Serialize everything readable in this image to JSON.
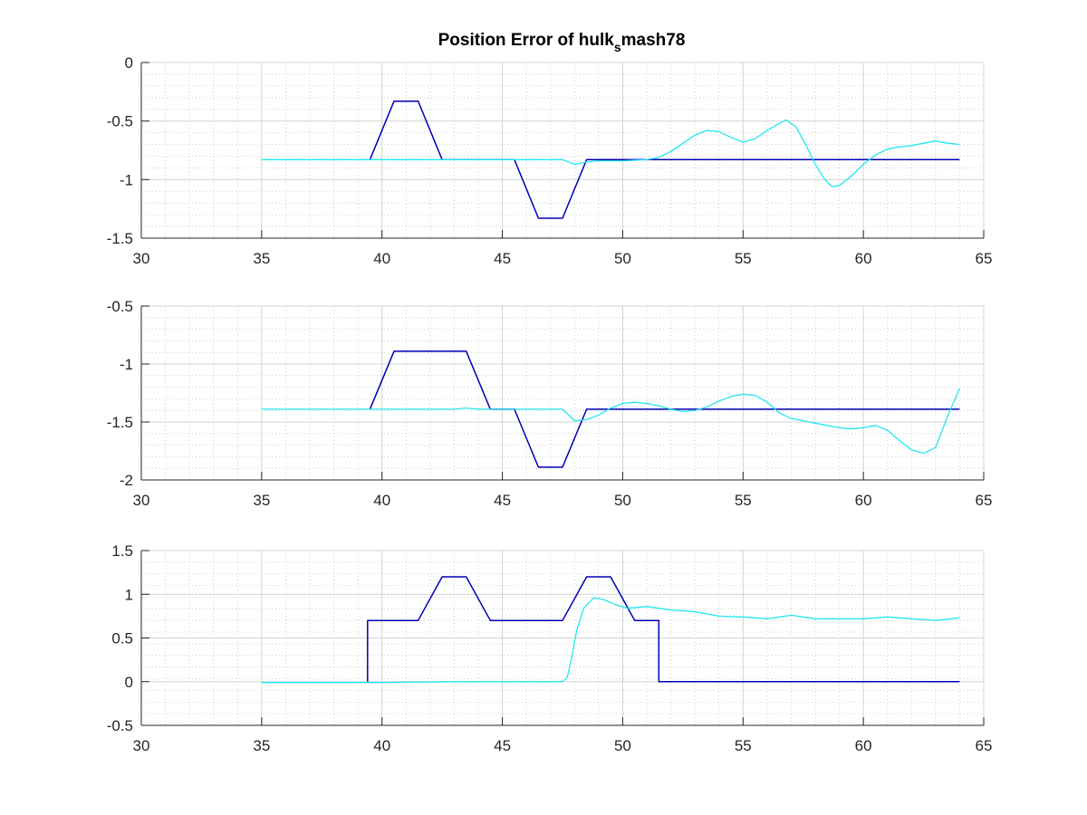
{
  "title": {
    "main": "Position Error of hulk",
    "subscript": "s",
    "suffix": "mash78"
  },
  "colors": {
    "background": "#ffffff",
    "axes": "#262626",
    "major_grid": "#d4d4d4",
    "minor_grid": "#c4c4c4",
    "reference": "#0000b3",
    "actual": "#22e6f0"
  },
  "chart_data": [
    {
      "type": "line",
      "xlim": [
        30,
        65
      ],
      "ylim": [
        -1.5,
        0
      ],
      "xticks": [
        30,
        35,
        40,
        45,
        50,
        55,
        60,
        65
      ],
      "yticks": [
        -1.5,
        -1,
        -0.5,
        0
      ],
      "xtick_labels": [
        "30",
        "35",
        "40",
        "45",
        "50",
        "55",
        "60",
        "65"
      ],
      "ytick_labels": [
        "-1.5",
        "-1",
        "-0.5",
        "0"
      ],
      "grid": "major and minor dotted",
      "series": [
        {
          "color": "#0000b3",
          "points": [
            [
              39.5,
              -0.83
            ],
            [
              40.5,
              -0.33
            ],
            [
              41.5,
              -0.33
            ],
            [
              42.5,
              -0.83
            ],
            [
              45.5,
              -0.83
            ],
            [
              46.5,
              -1.33
            ],
            [
              47.5,
              -1.33
            ],
            [
              48.5,
              -0.83
            ],
            [
              64,
              -0.83
            ]
          ]
        },
        {
          "color": "#22e6f0",
          "points": [
            [
              35,
              -0.83
            ],
            [
              40,
              -0.83
            ],
            [
              45,
              -0.83
            ],
            [
              47.5,
              -0.83
            ],
            [
              48,
              -0.87
            ],
            [
              48.5,
              -0.85
            ],
            [
              49,
              -0.84
            ],
            [
              50,
              -0.84
            ],
            [
              51,
              -0.83
            ],
            [
              51.5,
              -0.81
            ],
            [
              52,
              -0.76
            ],
            [
              52.5,
              -0.69
            ],
            [
              53,
              -0.62
            ],
            [
              53.5,
              -0.58
            ],
            [
              54,
              -0.59
            ],
            [
              54.5,
              -0.64
            ],
            [
              55,
              -0.68
            ],
            [
              55.5,
              -0.65
            ],
            [
              56,
              -0.58
            ],
            [
              56.5,
              -0.52
            ],
            [
              56.8,
              -0.49
            ],
            [
              57.2,
              -0.55
            ],
            [
              57.6,
              -0.7
            ],
            [
              58,
              -0.87
            ],
            [
              58.4,
              -1.0
            ],
            [
              58.7,
              -1.06
            ],
            [
              59,
              -1.05
            ],
            [
              59.5,
              -0.97
            ],
            [
              60,
              -0.87
            ],
            [
              60.5,
              -0.79
            ],
            [
              61,
              -0.74
            ],
            [
              61.5,
              -0.72
            ],
            [
              62,
              -0.71
            ],
            [
              62.5,
              -0.69
            ],
            [
              63,
              -0.67
            ],
            [
              63.5,
              -0.69
            ],
            [
              64,
              -0.7
            ]
          ]
        }
      ]
    },
    {
      "type": "line",
      "xlim": [
        30,
        65
      ],
      "ylim": [
        -2,
        -0.5
      ],
      "xticks": [
        30,
        35,
        40,
        45,
        50,
        55,
        60,
        65
      ],
      "yticks": [
        -2,
        -1.5,
        -1,
        -0.5
      ],
      "xtick_labels": [
        "30",
        "35",
        "40",
        "45",
        "50",
        "55",
        "60",
        "65"
      ],
      "ytick_labels": [
        "-2",
        "-1.5",
        "-1",
        "-0.5"
      ],
      "grid": "major and minor dotted",
      "series": [
        {
          "color": "#0000b3",
          "points": [
            [
              39.5,
              -1.39
            ],
            [
              40.5,
              -0.89
            ],
            [
              43.5,
              -0.89
            ],
            [
              44.5,
              -1.39
            ],
            [
              45.5,
              -1.39
            ],
            [
              46.5,
              -1.89
            ],
            [
              47.5,
              -1.89
            ],
            [
              48.5,
              -1.39
            ],
            [
              64,
              -1.39
            ]
          ]
        },
        {
          "color": "#22e6f0",
          "points": [
            [
              35,
              -1.39
            ],
            [
              40,
              -1.39
            ],
            [
              43,
              -1.39
            ],
            [
              43.5,
              -1.38
            ],
            [
              44,
              -1.39
            ],
            [
              46,
              -1.39
            ],
            [
              47.5,
              -1.39
            ],
            [
              48,
              -1.49
            ],
            [
              48.5,
              -1.48
            ],
            [
              49,
              -1.44
            ],
            [
              49.5,
              -1.38
            ],
            [
              50,
              -1.34
            ],
            [
              50.5,
              -1.33
            ],
            [
              51,
              -1.34
            ],
            [
              51.5,
              -1.36
            ],
            [
              52,
              -1.39
            ],
            [
              52.5,
              -1.41
            ],
            [
              53,
              -1.4
            ],
            [
              53.5,
              -1.37
            ],
            [
              54,
              -1.32
            ],
            [
              54.5,
              -1.28
            ],
            [
              55,
              -1.26
            ],
            [
              55.5,
              -1.27
            ],
            [
              56,
              -1.33
            ],
            [
              56.5,
              -1.42
            ],
            [
              57,
              -1.47
            ],
            [
              58,
              -1.51
            ],
            [
              59,
              -1.55
            ],
            [
              59.5,
              -1.56
            ],
            [
              60,
              -1.55
            ],
            [
              60.5,
              -1.53
            ],
            [
              61,
              -1.57
            ],
            [
              61.5,
              -1.66
            ],
            [
              62,
              -1.74
            ],
            [
              62.5,
              -1.77
            ],
            [
              63,
              -1.72
            ],
            [
              63.5,
              -1.45
            ],
            [
              64,
              -1.21
            ]
          ]
        }
      ]
    },
    {
      "type": "line",
      "xlim": [
        30,
        65
      ],
      "ylim": [
        -0.5,
        1.5
      ],
      "xticks": [
        30,
        35,
        40,
        45,
        50,
        55,
        60,
        65
      ],
      "yticks": [
        -0.5,
        0,
        0.5,
        1,
        1.5
      ],
      "xtick_labels": [
        "30",
        "35",
        "40",
        "45",
        "50",
        "55",
        "60",
        "65"
      ],
      "ytick_labels": [
        "-0.5",
        "0",
        "0.5",
        "1",
        "1.5"
      ],
      "grid": "major and minor dotted",
      "series": [
        {
          "color": "#0000b3",
          "points": [
            [
              39.4,
              0
            ],
            [
              39.4,
              0.7
            ],
            [
              41.5,
              0.7
            ],
            [
              42.5,
              1.2
            ],
            [
              43.5,
              1.2
            ],
            [
              44.5,
              0.7
            ],
            [
              47.5,
              0.7
            ],
            [
              48.5,
              1.2
            ],
            [
              49.5,
              1.2
            ],
            [
              50.5,
              0.7
            ],
            [
              51.5,
              0.7
            ],
            [
              51.5,
              0
            ],
            [
              64,
              0
            ]
          ]
        },
        {
          "color": "#22e6f0",
          "points": [
            [
              35,
              -0.01
            ],
            [
              40,
              -0.01
            ],
            [
              43,
              0
            ],
            [
              45,
              0
            ],
            [
              47.5,
              0
            ],
            [
              47.7,
              0.05
            ],
            [
              47.9,
              0.3
            ],
            [
              48.1,
              0.6
            ],
            [
              48.4,
              0.85
            ],
            [
              48.8,
              0.96
            ],
            [
              49.2,
              0.94
            ],
            [
              49.7,
              0.88
            ],
            [
              50.2,
              0.84
            ],
            [
              51,
              0.86
            ],
            [
              52,
              0.82
            ],
            [
              53,
              0.8
            ],
            [
              54,
              0.75
            ],
            [
              55,
              0.74
            ],
            [
              56,
              0.72
            ],
            [
              57,
              0.76
            ],
            [
              58,
              0.72
            ],
            [
              59,
              0.72
            ],
            [
              60,
              0.72
            ],
            [
              61,
              0.74
            ],
            [
              62,
              0.72
            ],
            [
              63,
              0.7
            ],
            [
              64,
              0.73
            ]
          ]
        }
      ]
    }
  ]
}
